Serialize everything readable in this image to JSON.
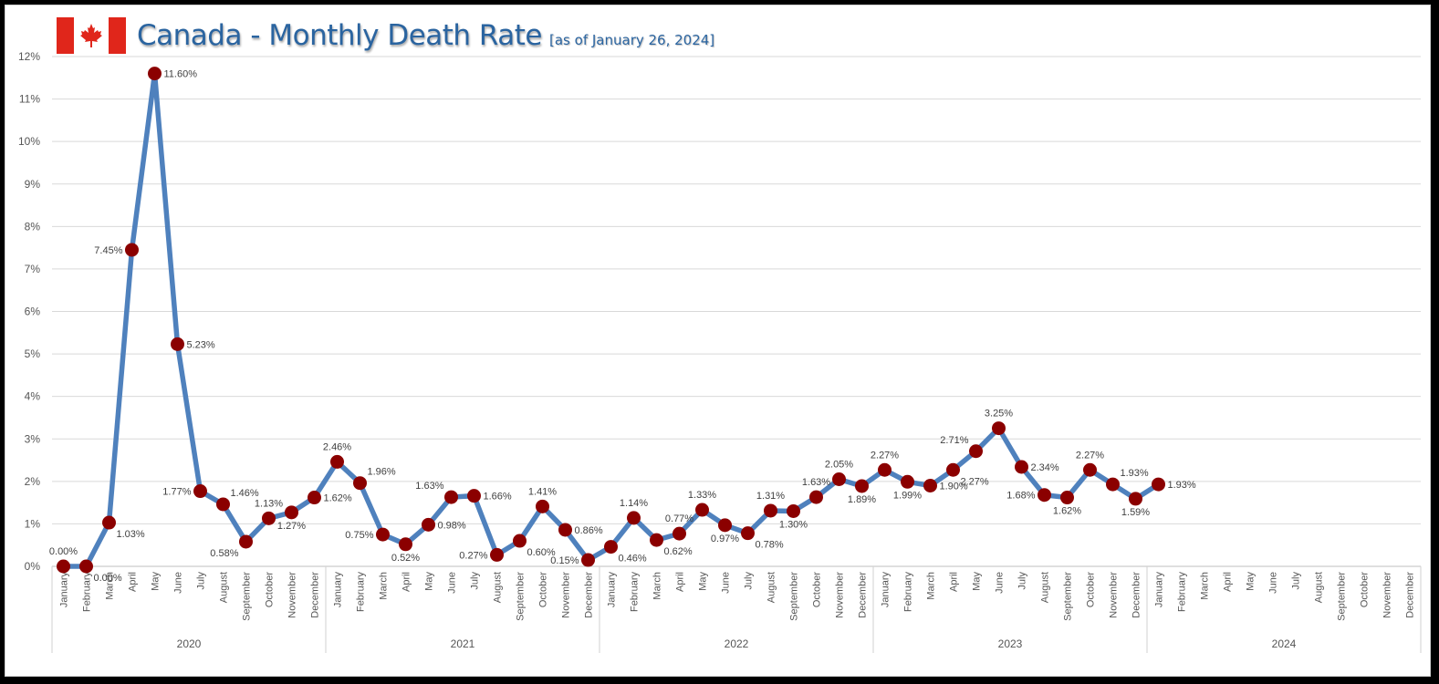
{
  "header": {
    "title": "Canada - Monthly Death Rate",
    "subtitle": "[as of January 26, 2024]",
    "flag_icon": "canada-flag-icon"
  },
  "colors": {
    "line": "#4f81bd",
    "marker": "#8b0000",
    "title": "#2a64a0",
    "flag_red": "#e0261b",
    "grid": "#d9d9d9"
  },
  "chart_data": {
    "type": "line",
    "title": "Canada - Monthly Death Rate [as of January 26, 2024]",
    "xlabel": "",
    "ylabel": "",
    "ylim": [
      0,
      12
    ],
    "yticks": [
      "0%",
      "1%",
      "2%",
      "3%",
      "4%",
      "5%",
      "6%",
      "7%",
      "8%",
      "9%",
      "10%",
      "11%",
      "12%"
    ],
    "grid": true,
    "legend": "none",
    "years": [
      "2020",
      "2021",
      "2022",
      "2023",
      "2024"
    ],
    "months": [
      "January",
      "February",
      "March",
      "April",
      "May",
      "June",
      "July",
      "August",
      "September",
      "October",
      "November",
      "December"
    ],
    "series": [
      {
        "name": "Monthly Death Rate (%)",
        "values": [
          0.0,
          0.0,
          1.03,
          7.45,
          11.6,
          5.23,
          1.77,
          1.46,
          0.58,
          1.13,
          1.27,
          1.62,
          2.46,
          1.96,
          0.75,
          0.52,
          0.98,
          1.63,
          1.66,
          0.27,
          0.6,
          1.41,
          0.86,
          0.15,
          0.46,
          1.14,
          0.62,
          0.77,
          1.33,
          0.97,
          0.78,
          1.31,
          1.3,
          1.63,
          2.05,
          1.89,
          2.27,
          1.99,
          1.9,
          2.27,
          2.71,
          3.25,
          2.34,
          1.68,
          1.62,
          2.27,
          1.93,
          1.59,
          1.93
        ],
        "labels": [
          "0.00%",
          "0.00%",
          "1.03%",
          "7.45%",
          "11.60%",
          "5.23%",
          "1.77%",
          "1.46%",
          "0.58%",
          "1.13%",
          "1.27%",
          "1.62%",
          "2.46%",
          "1.96%",
          "0.75%",
          "0.52%",
          "0.98%",
          "1.63%",
          "1.66%",
          "0.27%",
          "0.60%",
          "1.41%",
          "0.86%",
          "0.15%",
          "0.46%",
          "1.14%",
          "0.62%",
          "0.77%",
          "1.33%",
          "0.97%",
          "0.78%",
          "1.31%",
          "1.30%",
          "1.63%",
          "2.05%",
          "1.89%",
          "2.27%",
          "1.99%",
          "1.90%",
          "2.27%",
          "2.71%",
          "3.25%",
          "2.34%",
          "1.68%",
          "1.62%",
          "2.27%",
          "1.93%",
          "1.59%",
          "1.93%"
        ],
        "label_positions": [
          "above",
          "below-right",
          "below-right",
          "left",
          "right",
          "right",
          "left",
          "above-right",
          "below-left",
          "above",
          "below",
          "right",
          "above",
          "above-right",
          "left",
          "below",
          "right",
          "above-left",
          "right",
          "left",
          "below-right",
          "above",
          "right",
          "left",
          "below-right",
          "above",
          "below-right",
          "above",
          "above",
          "below",
          "below-right",
          "above",
          "below",
          "above",
          "above",
          "below",
          "above",
          "below",
          "right",
          "below-right",
          "above-left",
          "above",
          "right",
          "left",
          "below",
          "above",
          "above-right",
          "below",
          "right"
        ]
      }
    ]
  }
}
